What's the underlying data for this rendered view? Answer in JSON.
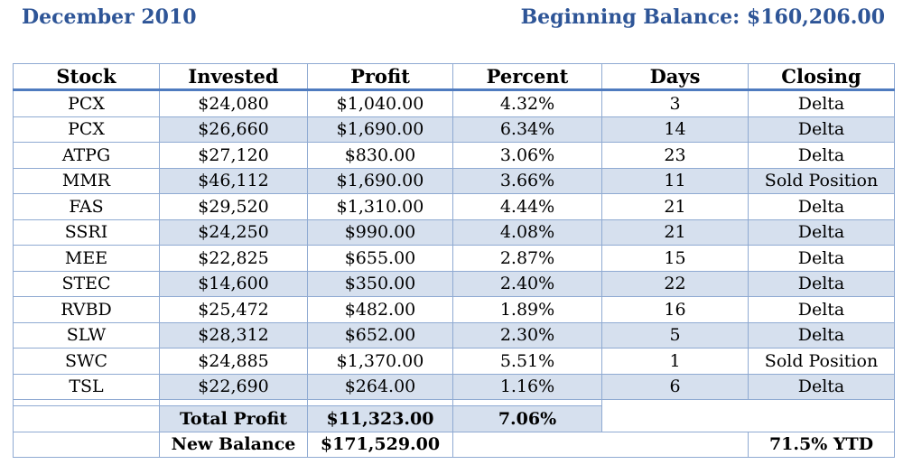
{
  "header": {
    "month": "December  2010",
    "beginning_balance": "Beginning Balance:  $160,206.00"
  },
  "table": {
    "columns": [
      "Stock",
      "Invested",
      "Profit",
      "Percent",
      "Days",
      "Closing"
    ],
    "rows": [
      [
        "PCX",
        "$24,080",
        "$1,040.00",
        "4.32%",
        "3",
        "Delta"
      ],
      [
        "PCX",
        "$26,660",
        "$1,690.00",
        "6.34%",
        "14",
        "Delta"
      ],
      [
        "ATPG",
        "$27,120",
        "$830.00",
        "3.06%",
        "23",
        "Delta"
      ],
      [
        "MMR",
        "$46,112",
        "$1,690.00",
        "3.66%",
        "11",
        "Sold Position"
      ],
      [
        "FAS",
        "$29,520",
        "$1,310.00",
        "4.44%",
        "21",
        "Delta"
      ],
      [
        "SSRI",
        "$24,250",
        "$990.00",
        "4.08%",
        "21",
        "Delta"
      ],
      [
        "MEE",
        "$22,825",
        "$655.00",
        "2.87%",
        "15",
        "Delta"
      ],
      [
        "STEC",
        "$14,600",
        "$350.00",
        "2.40%",
        "22",
        "Delta"
      ],
      [
        "RVBD",
        "$25,472",
        "$482.00",
        "1.89%",
        "16",
        "Delta"
      ],
      [
        "SLW",
        "$28,312",
        "$652.00",
        "2.30%",
        "5",
        "Delta"
      ],
      [
        "SWC",
        "$24,885",
        "$1,370.00",
        "5.51%",
        "1",
        "Sold Position"
      ],
      [
        "TSL",
        "$22,690",
        "$264.00",
        "1.16%",
        "6",
        "Delta"
      ]
    ]
  },
  "summary": {
    "total_profit_label": "Total Profit",
    "total_profit_value": "$11,323.00",
    "total_percent": "7.06%",
    "new_balance_label": "New Balance",
    "new_balance_value": "$171,529.00",
    "ytd": "71.5% YTD"
  },
  "colors": {
    "title": "#2e5597",
    "row_shade": "#d6e0ee",
    "border": "#8faad2",
    "header_rule": "#4f7bbf"
  }
}
